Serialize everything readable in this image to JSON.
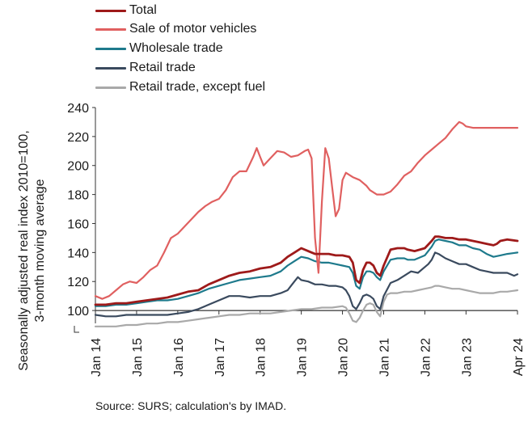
{
  "chart_data": {
    "type": "line",
    "ylabel": [
      "Seasonally adjusted real index 2010=100,",
      "3-month moving average"
    ],
    "ylim": [
      85,
      240
    ],
    "yticks": [
      100,
      120,
      140,
      160,
      180,
      200,
      220,
      240
    ],
    "x_start": "2014-01",
    "x_end": "2024-04",
    "xticks": [
      "Jan 14",
      "Jan 15",
      "Jan 16",
      "Jan 17",
      "Jan 18",
      "Jan 19",
      "Jan 20",
      "Jan 21",
      "Jan 22",
      "Jan 23",
      "Apr 24"
    ],
    "reference_line": 100,
    "grid": false,
    "legend_position": "top-left",
    "series": [
      {
        "name": "Total",
        "color": "#9e1a1a",
        "width": 2.8,
        "values": [
          [
            0,
            104
          ],
          [
            3,
            104
          ],
          [
            6,
            105
          ],
          [
            9,
            105
          ],
          [
            12,
            106
          ],
          [
            15,
            107
          ],
          [
            18,
            108
          ],
          [
            21,
            109
          ],
          [
            24,
            111
          ],
          [
            27,
            113
          ],
          [
            30,
            114
          ],
          [
            33,
            118
          ],
          [
            36,
            121
          ],
          [
            39,
            124
          ],
          [
            42,
            126
          ],
          [
            45,
            127
          ],
          [
            48,
            129
          ],
          [
            51,
            130
          ],
          [
            54,
            133
          ],
          [
            56,
            137
          ],
          [
            58,
            140
          ],
          [
            60,
            143
          ],
          [
            62,
            141
          ],
          [
            64,
            139
          ],
          [
            66,
            139
          ],
          [
            68,
            139
          ],
          [
            70,
            138
          ],
          [
            72,
            138
          ],
          [
            74,
            137
          ],
          [
            75,
            133
          ],
          [
            76,
            121
          ],
          [
            77,
            119
          ],
          [
            78,
            128
          ],
          [
            79,
            133
          ],
          [
            80,
            133
          ],
          [
            81,
            131
          ],
          [
            82,
            126
          ],
          [
            83,
            124
          ],
          [
            84,
            131
          ],
          [
            86,
            142
          ],
          [
            88,
            143
          ],
          [
            90,
            143
          ],
          [
            91,
            142
          ],
          [
            93,
            141
          ],
          [
            96,
            143
          ],
          [
            98,
            148
          ],
          [
            99,
            151
          ],
          [
            100,
            151
          ],
          [
            102,
            150
          ],
          [
            104,
            150
          ],
          [
            106,
            149
          ],
          [
            108,
            149
          ],
          [
            110,
            148
          ],
          [
            112,
            147
          ],
          [
            114,
            146
          ],
          [
            116,
            145
          ],
          [
            117,
            146
          ],
          [
            118,
            148
          ],
          [
            120,
            149
          ],
          [
            123,
            148
          ]
        ]
      },
      {
        "name": "Sale of motor vehicles",
        "color": "#e06060",
        "width": 2.2,
        "values": [
          [
            0,
            110
          ],
          [
            2,
            108
          ],
          [
            4,
            110
          ],
          [
            6,
            114
          ],
          [
            8,
            118
          ],
          [
            10,
            120
          ],
          [
            12,
            119
          ],
          [
            14,
            123
          ],
          [
            16,
            128
          ],
          [
            18,
            131
          ],
          [
            20,
            140
          ],
          [
            22,
            150
          ],
          [
            24,
            153
          ],
          [
            26,
            158
          ],
          [
            28,
            163
          ],
          [
            30,
            168
          ],
          [
            32,
            172
          ],
          [
            34,
            175
          ],
          [
            36,
            177
          ],
          [
            38,
            183
          ],
          [
            40,
            192
          ],
          [
            42,
            196
          ],
          [
            44,
            196
          ],
          [
            46,
            206
          ],
          [
            47,
            212
          ],
          [
            48,
            206
          ],
          [
            49,
            200
          ],
          [
            51,
            205
          ],
          [
            53,
            210
          ],
          [
            55,
            209
          ],
          [
            57,
            206
          ],
          [
            59,
            207
          ],
          [
            61,
            210
          ],
          [
            62,
            211
          ],
          [
            63,
            205
          ],
          [
            64,
            150
          ],
          [
            65,
            126
          ],
          [
            66,
            175
          ],
          [
            67,
            212
          ],
          [
            68,
            205
          ],
          [
            69,
            185
          ],
          [
            70,
            165
          ],
          [
            71,
            170
          ],
          [
            72,
            190
          ],
          [
            73,
            195
          ],
          [
            75,
            192
          ],
          [
            77,
            190
          ],
          [
            79,
            186
          ],
          [
            80,
            183
          ],
          [
            82,
            180
          ],
          [
            84,
            180
          ],
          [
            86,
            182
          ],
          [
            88,
            187
          ],
          [
            90,
            193
          ],
          [
            92,
            196
          ],
          [
            94,
            202
          ],
          [
            96,
            207
          ],
          [
            98,
            211
          ],
          [
            100,
            215
          ],
          [
            102,
            219
          ],
          [
            104,
            225
          ],
          [
            106,
            230
          ],
          [
            107,
            229
          ],
          [
            108,
            227
          ],
          [
            110,
            226
          ],
          [
            123,
            226
          ]
        ]
      },
      {
        "name": "Wholesale trade",
        "color": "#1e7a8c",
        "width": 2.2,
        "values": [
          [
            0,
            103
          ],
          [
            3,
            103
          ],
          [
            6,
            104
          ],
          [
            9,
            104
          ],
          [
            12,
            105
          ],
          [
            15,
            106
          ],
          [
            18,
            107
          ],
          [
            21,
            107
          ],
          [
            24,
            108
          ],
          [
            27,
            110
          ],
          [
            30,
            112
          ],
          [
            33,
            115
          ],
          [
            36,
            117
          ],
          [
            39,
            119
          ],
          [
            42,
            121
          ],
          [
            45,
            122
          ],
          [
            48,
            123
          ],
          [
            51,
            124
          ],
          [
            54,
            127
          ],
          [
            56,
            131
          ],
          [
            58,
            134
          ],
          [
            60,
            137
          ],
          [
            62,
            136
          ],
          [
            64,
            134
          ],
          [
            66,
            133
          ],
          [
            68,
            133
          ],
          [
            70,
            132
          ],
          [
            72,
            131
          ],
          [
            74,
            130
          ],
          [
            75,
            126
          ],
          [
            76,
            117
          ],
          [
            77,
            115
          ],
          [
            78,
            123
          ],
          [
            79,
            127
          ],
          [
            80,
            127
          ],
          [
            81,
            126
          ],
          [
            82,
            123
          ],
          [
            83,
            121
          ],
          [
            84,
            127
          ],
          [
            86,
            135
          ],
          [
            88,
            136
          ],
          [
            90,
            136
          ],
          [
            91,
            135
          ],
          [
            93,
            135
          ],
          [
            96,
            138
          ],
          [
            98,
            144
          ],
          [
            99,
            148
          ],
          [
            100,
            149
          ],
          [
            102,
            148
          ],
          [
            104,
            147
          ],
          [
            106,
            145
          ],
          [
            108,
            145
          ],
          [
            110,
            143
          ],
          [
            112,
            142
          ],
          [
            114,
            139
          ],
          [
            116,
            137
          ],
          [
            118,
            138
          ],
          [
            120,
            139
          ],
          [
            123,
            140
          ]
        ]
      },
      {
        "name": "Retail trade",
        "color": "#3a4a5e",
        "width": 2.2,
        "values": [
          [
            0,
            97
          ],
          [
            3,
            96
          ],
          [
            6,
            96
          ],
          [
            9,
            97
          ],
          [
            12,
            97
          ],
          [
            15,
            97
          ],
          [
            18,
            97
          ],
          [
            21,
            97
          ],
          [
            24,
            98
          ],
          [
            27,
            99
          ],
          [
            30,
            101
          ],
          [
            33,
            104
          ],
          [
            36,
            107
          ],
          [
            39,
            110
          ],
          [
            42,
            110
          ],
          [
            45,
            109
          ],
          [
            48,
            110
          ],
          [
            51,
            110
          ],
          [
            54,
            112
          ],
          [
            56,
            114
          ],
          [
            57,
            117
          ],
          [
            58,
            120
          ],
          [
            59,
            123
          ],
          [
            60,
            121
          ],
          [
            62,
            120
          ],
          [
            64,
            118
          ],
          [
            66,
            118
          ],
          [
            68,
            117
          ],
          [
            70,
            117
          ],
          [
            72,
            116
          ],
          [
            73,
            114
          ],
          [
            74,
            110
          ],
          [
            75,
            103
          ],
          [
            76,
            101
          ],
          [
            77,
            105
          ],
          [
            78,
            110
          ],
          [
            79,
            111
          ],
          [
            80,
            110
          ],
          [
            81,
            108
          ],
          [
            82,
            103
          ],
          [
            83,
            101
          ],
          [
            84,
            110
          ],
          [
            86,
            119
          ],
          [
            88,
            121
          ],
          [
            90,
            124
          ],
          [
            92,
            127
          ],
          [
            94,
            126
          ],
          [
            96,
            130
          ],
          [
            97,
            132
          ],
          [
            98,
            135
          ],
          [
            99,
            140
          ],
          [
            100,
            139
          ],
          [
            102,
            136
          ],
          [
            104,
            134
          ],
          [
            106,
            132
          ],
          [
            108,
            132
          ],
          [
            110,
            130
          ],
          [
            112,
            128
          ],
          [
            114,
            127
          ],
          [
            116,
            126
          ],
          [
            118,
            126
          ],
          [
            120,
            126
          ],
          [
            122,
            124
          ],
          [
            123,
            125
          ]
        ]
      },
      {
        "name": "Retail trade, except fuel",
        "color": "#a9a9a9",
        "width": 2.2,
        "values": [
          [
            0,
            89
          ],
          [
            3,
            89
          ],
          [
            6,
            89
          ],
          [
            9,
            90
          ],
          [
            12,
            90
          ],
          [
            15,
            91
          ],
          [
            18,
            91
          ],
          [
            21,
            92
          ],
          [
            24,
            92
          ],
          [
            27,
            93
          ],
          [
            30,
            94
          ],
          [
            33,
            95
          ],
          [
            36,
            96
          ],
          [
            39,
            97
          ],
          [
            42,
            97
          ],
          [
            45,
            98
          ],
          [
            48,
            98
          ],
          [
            51,
            98
          ],
          [
            54,
            99
          ],
          [
            57,
            100
          ],
          [
            60,
            101
          ],
          [
            63,
            101
          ],
          [
            66,
            102
          ],
          [
            69,
            102
          ],
          [
            72,
            103
          ],
          [
            73,
            102
          ],
          [
            74,
            98
          ],
          [
            75,
            93
          ],
          [
            76,
            92
          ],
          [
            77,
            95
          ],
          [
            78,
            100
          ],
          [
            79,
            104
          ],
          [
            80,
            105
          ],
          [
            81,
            104
          ],
          [
            82,
            99
          ],
          [
            83,
            96
          ],
          [
            84,
            106
          ],
          [
            85,
            111
          ],
          [
            86,
            112
          ],
          [
            88,
            112
          ],
          [
            90,
            113
          ],
          [
            92,
            113
          ],
          [
            94,
            114
          ],
          [
            96,
            115
          ],
          [
            98,
            116
          ],
          [
            99,
            117
          ],
          [
            100,
            117
          ],
          [
            102,
            116
          ],
          [
            104,
            115
          ],
          [
            106,
            115
          ],
          [
            108,
            114
          ],
          [
            110,
            113
          ],
          [
            112,
            112
          ],
          [
            114,
            112
          ],
          [
            116,
            112
          ],
          [
            118,
            113
          ],
          [
            120,
            113
          ],
          [
            123,
            114
          ]
        ]
      }
    ]
  },
  "source": "Source: SURS; calculation's by IMAD."
}
